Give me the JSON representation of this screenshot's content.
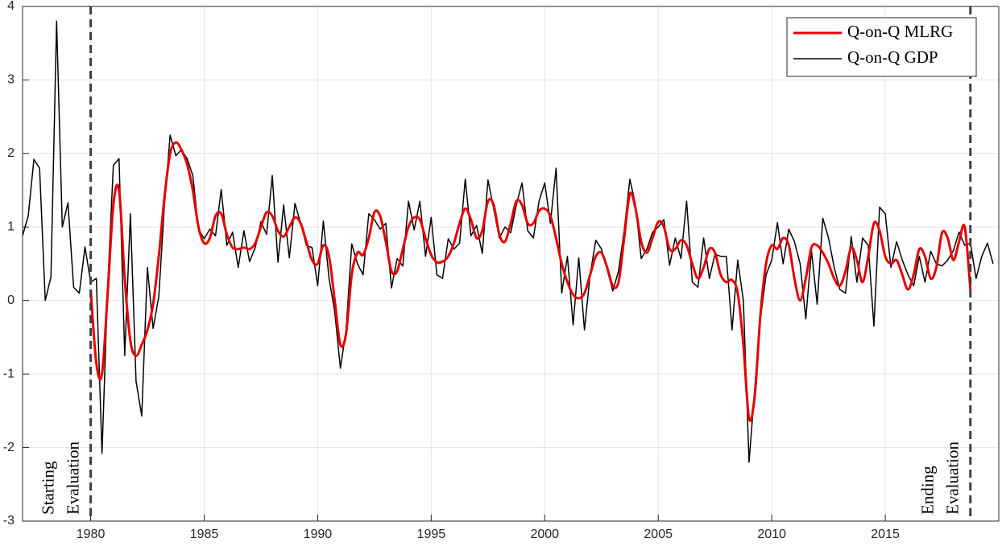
{
  "chart_data": {
    "type": "line",
    "x": [
      1977,
      1977.25,
      1977.5,
      1977.75,
      1978,
      1978.25,
      1978.5,
      1978.75,
      1979,
      1979.25,
      1979.5,
      1979.75,
      1980,
      1980.25,
      1980.5,
      1980.75,
      1981,
      1981.25,
      1981.5,
      1981.75,
      1982,
      1982.25,
      1982.5,
      1982.75,
      1983,
      1983.25,
      1983.5,
      1983.75,
      1984,
      1984.25,
      1984.5,
      1984.75,
      1985,
      1985.25,
      1985.5,
      1985.75,
      1986,
      1986.25,
      1986.5,
      1986.75,
      1987,
      1987.25,
      1987.5,
      1987.75,
      1988,
      1988.25,
      1988.5,
      1988.75,
      1989,
      1989.25,
      1989.5,
      1989.75,
      1990,
      1990.25,
      1990.5,
      1990.75,
      1991,
      1991.25,
      1991.5,
      1991.75,
      1992,
      1992.25,
      1992.5,
      1992.75,
      1993,
      1993.25,
      1993.5,
      1993.75,
      1994,
      1994.25,
      1994.5,
      1994.75,
      1995,
      1995.25,
      1995.5,
      1995.75,
      1996,
      1996.25,
      1996.5,
      1996.75,
      1997,
      1997.25,
      1997.5,
      1997.75,
      1998,
      1998.25,
      1998.5,
      1998.75,
      1999,
      1999.25,
      1999.5,
      1999.75,
      2000,
      2000.25,
      2000.5,
      2000.75,
      2001,
      2001.25,
      2001.5,
      2001.75,
      2002,
      2002.25,
      2002.5,
      2002.75,
      2003,
      2003.25,
      2003.5,
      2003.75,
      2004,
      2004.25,
      2004.5,
      2004.75,
      2005,
      2005.25,
      2005.5,
      2005.75,
      2006,
      2006.25,
      2006.5,
      2006.75,
      2007,
      2007.25,
      2007.5,
      2007.75,
      2008,
      2008.25,
      2008.5,
      2008.75,
      2009,
      2009.25,
      2009.5,
      2009.75,
      2010,
      2010.25,
      2010.5,
      2010.75,
      2011,
      2011.25,
      2011.5,
      2011.75,
      2012,
      2012.25,
      2012.5,
      2012.75,
      2013,
      2013.25,
      2013.5,
      2013.75,
      2014,
      2014.25,
      2014.5,
      2014.75,
      2015,
      2015.25,
      2015.5,
      2015.75,
      2016,
      2016.25,
      2016.5,
      2016.75,
      2017,
      2017.25,
      2017.5,
      2017.75,
      2018,
      2018.25,
      2018.5,
      2018.75,
      2019,
      2019.25,
      2019.5,
      2019.75
    ],
    "series": [
      {
        "name": "Q-on-Q MLRG",
        "color": "#e60000",
        "smooth": true,
        "width": 3,
        "values": [
          null,
          null,
          null,
          null,
          null,
          null,
          null,
          null,
          null,
          null,
          null,
          null,
          0.15,
          -0.85,
          -1.0,
          0.1,
          1.3,
          1.5,
          0.3,
          -0.55,
          -0.75,
          -0.6,
          -0.4,
          -0.05,
          0.6,
          1.4,
          2.0,
          2.15,
          2.05,
          1.85,
          1.5,
          1.0,
          0.78,
          0.85,
          1.15,
          1.18,
          0.9,
          0.72,
          0.7,
          0.72,
          0.7,
          0.78,
          1.0,
          1.2,
          1.15,
          0.95,
          0.87,
          1.0,
          1.13,
          1.05,
          0.8,
          0.55,
          0.5,
          0.75,
          0.6,
          0.0,
          -0.6,
          -0.45,
          0.35,
          0.65,
          0.62,
          0.85,
          1.2,
          1.15,
          0.8,
          0.4,
          0.4,
          0.7,
          1.0,
          1.13,
          1.1,
          0.85,
          0.62,
          0.52,
          0.53,
          0.6,
          0.78,
          1.05,
          1.25,
          1.1,
          0.85,
          0.95,
          1.35,
          1.3,
          0.9,
          0.8,
          1.05,
          1.35,
          1.3,
          1.05,
          1.05,
          1.22,
          1.25,
          1.15,
          0.85,
          0.5,
          0.25,
          0.08,
          0.03,
          0.1,
          0.35,
          0.6,
          0.65,
          0.45,
          0.2,
          0.25,
          0.85,
          1.45,
          1.25,
          0.8,
          0.65,
          0.85,
          1.07,
          1.0,
          0.7,
          0.7,
          0.82,
          0.75,
          0.5,
          0.3,
          0.45,
          0.7,
          0.65,
          0.35,
          0.25,
          0.28,
          0.1,
          -0.6,
          -1.6,
          -1.3,
          -0.2,
          0.5,
          0.75,
          0.7,
          0.85,
          0.75,
          0.3,
          0.0,
          0.3,
          0.72,
          0.75,
          0.65,
          0.5,
          0.3,
          0.2,
          0.4,
          0.72,
          0.55,
          0.25,
          0.6,
          1.05,
          0.95,
          0.6,
          0.5,
          0.55,
          0.35,
          0.15,
          0.35,
          0.7,
          0.6,
          0.3,
          0.45,
          0.92,
          0.85,
          0.55,
          0.8,
          1.0,
          0.15,
          null,
          null,
          null,
          null
        ]
      },
      {
        "name": "Q-on-Q GDP",
        "color": "#000000",
        "smooth": false,
        "width": 1.5,
        "values": [
          0.88,
          1.15,
          1.92,
          1.8,
          0.0,
          0.32,
          3.8,
          1.0,
          1.33,
          0.18,
          0.1,
          0.73,
          0.25,
          0.3,
          -2.08,
          0.2,
          1.84,
          1.93,
          -0.75,
          1.18,
          -1.1,
          -1.57,
          0.45,
          -0.38,
          0.05,
          1.3,
          2.25,
          1.97,
          2.05,
          1.93,
          1.7,
          0.97,
          0.84,
          0.97,
          0.88,
          1.51,
          0.75,
          0.93,
          0.45,
          0.95,
          0.53,
          0.72,
          1.07,
          0.9,
          1.7,
          0.52,
          1.3,
          0.58,
          1.32,
          1.05,
          0.75,
          0.72,
          0.2,
          1.08,
          0.3,
          -0.15,
          -0.92,
          -0.4,
          0.77,
          0.5,
          0.35,
          1.18,
          1.1,
          0.97,
          1.05,
          0.17,
          0.57,
          0.47,
          1.35,
          0.96,
          1.35,
          0.6,
          1.13,
          0.35,
          0.3,
          0.84,
          0.7,
          0.78,
          1.65,
          0.88,
          1.02,
          0.64,
          1.64,
          1.25,
          0.85,
          1.0,
          0.92,
          1.3,
          1.6,
          0.95,
          0.85,
          1.35,
          1.6,
          1.05,
          1.8,
          0.1,
          0.6,
          -0.33,
          0.58,
          -0.4,
          0.35,
          0.82,
          0.7,
          0.42,
          0.13,
          0.4,
          0.95,
          1.65,
          1.3,
          0.57,
          0.7,
          0.93,
          1.0,
          1.1,
          0.48,
          0.85,
          0.57,
          1.35,
          0.25,
          0.18,
          0.85,
          0.3,
          0.63,
          0.6,
          0.6,
          -0.4,
          0.55,
          0.0,
          -2.2,
          -1.2,
          -0.25,
          0.35,
          0.55,
          1.06,
          0.5,
          0.97,
          0.8,
          0.5,
          -0.25,
          0.68,
          -0.05,
          1.12,
          0.85,
          0.45,
          0.15,
          0.1,
          0.87,
          0.25,
          0.85,
          0.75,
          -0.35,
          1.27,
          1.18,
          0.45,
          0.8,
          0.55,
          0.35,
          0.2,
          0.6,
          0.25,
          0.67,
          0.5,
          0.47,
          0.55,
          0.68,
          0.93,
          0.75,
          0.78,
          0.3,
          0.6,
          0.78,
          0.5
        ]
      }
    ],
    "xlim": [
      1977,
      2020
    ],
    "xticks": [
      1980,
      1985,
      1990,
      1995,
      2000,
      2005,
      2010,
      2015
    ],
    "ylim": [
      -3,
      4
    ],
    "yticks": [
      -3,
      -2,
      -1,
      0,
      1,
      2,
      3,
      4
    ],
    "grid": true,
    "legend": "top-right",
    "annotations": [
      {
        "x": 1980,
        "lines": [
          "Starting",
          "Evaluation"
        ]
      },
      {
        "x": 2018.75,
        "lines": [
          "Ending",
          "Evaluation"
        ]
      }
    ]
  }
}
